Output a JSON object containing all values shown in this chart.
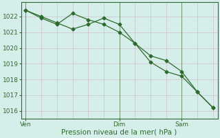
{
  "line1_x": [
    0,
    1,
    2,
    3,
    4,
    5,
    6,
    7,
    8,
    9,
    10,
    11,
    12
  ],
  "line1_y": [
    1022.4,
    1021.9,
    1021.5,
    1022.2,
    1021.8,
    1021.5,
    1021.0,
    1020.3,
    1019.5,
    1019.2,
    1018.5,
    1017.2,
    1016.2
  ],
  "line2_x": [
    0,
    1,
    2,
    3,
    4,
    5,
    6,
    7,
    8,
    9,
    10,
    11,
    12
  ],
  "line2_y": [
    1022.4,
    1022.0,
    1021.6,
    1021.2,
    1021.5,
    1021.9,
    1021.5,
    1020.3,
    1019.1,
    1018.5,
    1018.2,
    1017.2,
    1016.2
  ],
  "xtick_positions": [
    0,
    6,
    10
  ],
  "xtick_labels": [
    "Ven",
    "Dim",
    "Sam"
  ],
  "vline_positions": [
    0,
    6,
    10
  ],
  "ytick_positions": [
    1016,
    1017,
    1018,
    1019,
    1020,
    1021,
    1022
  ],
  "ylim": [
    1015.5,
    1022.9
  ],
  "xlim": [
    -0.3,
    12.3
  ],
  "line_color": "#2d6a2d",
  "bg_color": "#d6eeea",
  "grid_color_v": "#c8b8c8",
  "grid_color_h": "#c8b8c8",
  "xlabel": "Pression niveau de la mer( hPa )",
  "marker": "D",
  "marker_size": 2.5,
  "linewidth": 0.9,
  "xlabel_fontsize": 7.5,
  "tick_labelsize": 6.5,
  "n_grid_cols": 13,
  "n_grid_rows": 7
}
